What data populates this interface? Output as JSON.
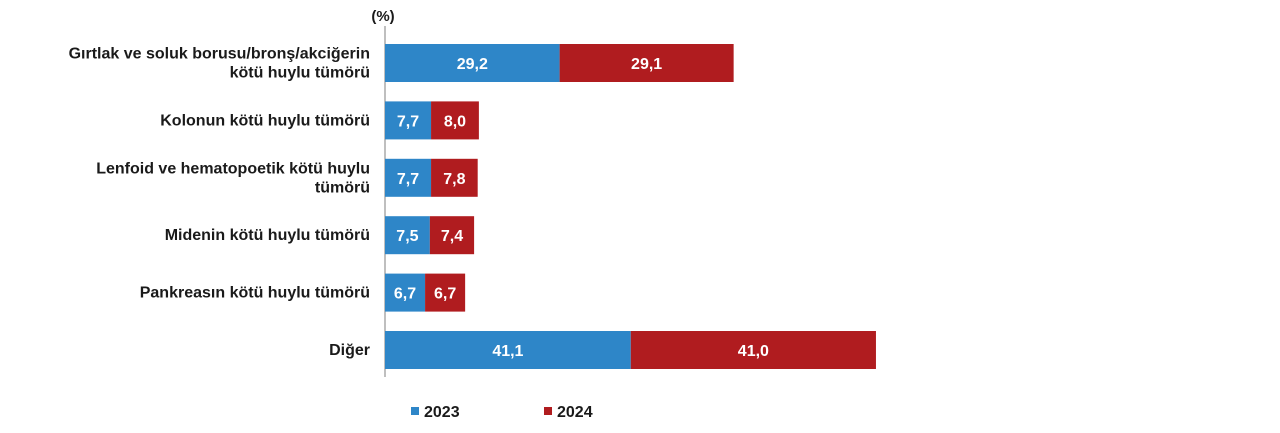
{
  "chart_data": {
    "type": "bar",
    "orientation": "horizontal",
    "stacked": true,
    "unit_label": "(%)",
    "categories": [
      [
        "Gırtlak ve soluk borusu/bronş/akciğerin",
        "kötü huylu tümörü"
      ],
      [
        "Kolonun kötü huylu tümörü"
      ],
      [
        "Lenfoid ve hematopoetik kötü huylu",
        "tümörü"
      ],
      [
        "Midenin kötü huylu tümörü"
      ],
      [
        "Pankreasın kötü huylu tümörü"
      ],
      [
        "Diğer"
      ]
    ],
    "series": [
      {
        "name": "2023",
        "color": "#2e86c8",
        "values": [
          29.2,
          7.7,
          7.7,
          7.5,
          6.7,
          41.1
        ],
        "labels": [
          "29,2",
          "7,7",
          "7,7",
          "7,5",
          "6,7",
          "41,1"
        ]
      },
      {
        "name": "2024",
        "color": "#b01c1f",
        "values": [
          29.1,
          8.0,
          7.8,
          7.4,
          6.7,
          41.0
        ],
        "labels": [
          "29,1",
          "8,0",
          "7,8",
          "7,4",
          "6,7",
          "41,0"
        ]
      }
    ],
    "legend_position": "bottom",
    "grid": false
  }
}
